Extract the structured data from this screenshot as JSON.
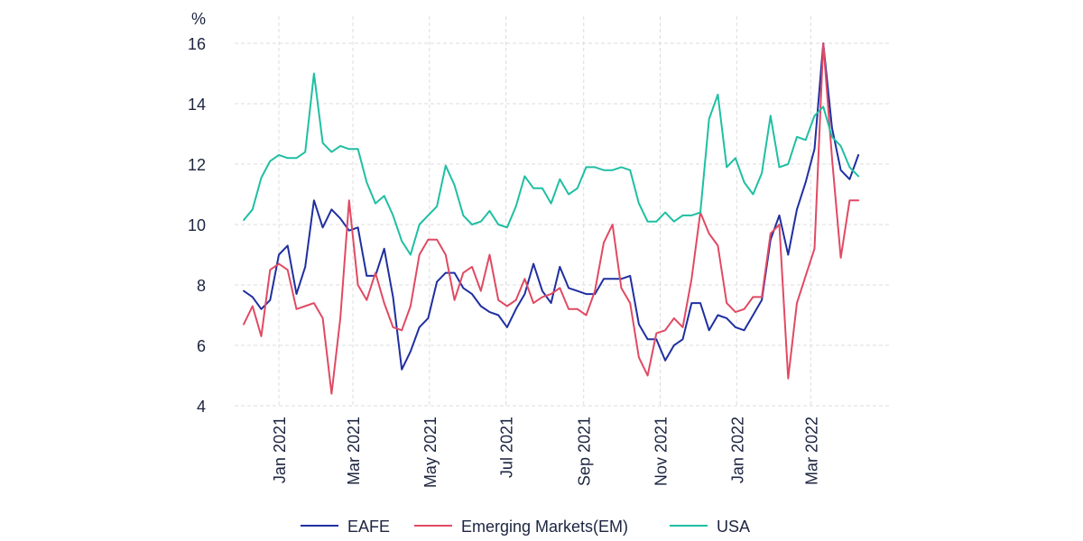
{
  "chart_data": {
    "type": "line",
    "title": "",
    "xlabel": "",
    "ylabel": "%",
    "ylim": [
      4,
      16
    ],
    "yticks": [
      4,
      6,
      8,
      10,
      12,
      14,
      16
    ],
    "xlim": [
      "2020-12-04",
      "2022-04-01"
    ],
    "xticks": [
      {
        "date": "2021-01-01",
        "label": "Jan 2021"
      },
      {
        "date": "2021-03-01",
        "label": "Mar 2021"
      },
      {
        "date": "2021-05-01",
        "label": "May 2021"
      },
      {
        "date": "2021-07-01",
        "label": "Jul 2021"
      },
      {
        "date": "2021-09-01",
        "label": "Sep 2021"
      },
      {
        "date": "2021-11-01",
        "label": "Nov 2021"
      },
      {
        "date": "2022-01-01",
        "label": "Jan 2022"
      },
      {
        "date": "2022-03-01",
        "label": "Mar 2022"
      }
    ],
    "grid": true,
    "legend_position": "bottom",
    "x_start": "2020-12-04",
    "x_step_days": 7,
    "series": [
      {
        "name": "EAFE",
        "color": "#1f2fa0",
        "values": [
          7.8,
          7.6,
          7.2,
          7.5,
          9.0,
          9.3,
          7.7,
          8.6,
          10.8,
          9.9,
          10.5,
          10.2,
          9.8,
          9.9,
          8.3,
          8.3,
          9.2,
          7.6,
          5.2,
          5.8,
          6.6,
          6.9,
          8.1,
          8.4,
          8.4,
          7.9,
          7.7,
          7.3,
          7.1,
          7.0,
          6.6,
          7.2,
          7.7,
          8.7,
          7.8,
          7.4,
          8.6,
          7.9,
          7.8,
          7.7,
          7.7,
          8.2,
          8.2,
          8.2,
          8.3,
          6.7,
          6.2,
          6.2,
          5.5,
          6.0,
          6.2,
          7.4,
          7.4,
          6.5,
          7.0,
          6.9,
          6.6,
          6.5,
          7.0,
          7.5,
          9.5,
          10.3,
          9.0,
          10.5,
          11.4,
          12.5,
          16.0,
          13.2,
          11.8,
          11.5,
          12.3
        ]
      },
      {
        "name": "Emerging Markets(EM)",
        "color": "#e04a63",
        "values": [
          6.7,
          7.3,
          6.3,
          8.5,
          8.7,
          8.5,
          7.2,
          7.3,
          7.4,
          6.9,
          4.4,
          6.9,
          10.8,
          8.0,
          7.5,
          8.4,
          7.4,
          6.6,
          6.5,
          7.3,
          9.0,
          9.5,
          9.5,
          9.0,
          7.5,
          8.4,
          8.6,
          7.8,
          9.0,
          7.5,
          7.3,
          7.5,
          8.2,
          7.4,
          7.6,
          7.7,
          7.9,
          7.2,
          7.2,
          7.0,
          7.8,
          9.4,
          10.0,
          7.9,
          7.4,
          5.6,
          5.0,
          6.4,
          6.5,
          6.9,
          6.6,
          8.2,
          10.4,
          9.7,
          9.3,
          7.4,
          7.1,
          7.2,
          7.6,
          7.6,
          9.7,
          10.0,
          4.9,
          7.4,
          8.3,
          9.2,
          16.0,
          12.2,
          8.9,
          10.8,
          10.8
        ]
      },
      {
        "name": "USA",
        "color": "#1fbfa3",
        "values": [
          10.15,
          10.5,
          11.55,
          12.1,
          12.3,
          12.2,
          12.2,
          12.4,
          15.0,
          12.7,
          12.4,
          12.6,
          12.5,
          12.5,
          11.4,
          10.7,
          10.95,
          10.3,
          9.45,
          9.0,
          10.0,
          10.3,
          10.6,
          11.95,
          11.3,
          10.3,
          10.0,
          10.1,
          10.45,
          10.0,
          9.9,
          10.6,
          11.6,
          11.2,
          11.2,
          10.7,
          11.5,
          11.0,
          11.2,
          11.9,
          11.9,
          11.8,
          11.8,
          11.9,
          11.8,
          10.7,
          10.1,
          10.1,
          10.4,
          10.1,
          10.3,
          10.3,
          10.4,
          13.5,
          14.3,
          11.9,
          12.2,
          11.4,
          11.0,
          11.7,
          13.6,
          11.9,
          12.0,
          12.9,
          12.8,
          13.6,
          13.9,
          12.9,
          12.6,
          11.9,
          11.6
        ]
      }
    ]
  }
}
